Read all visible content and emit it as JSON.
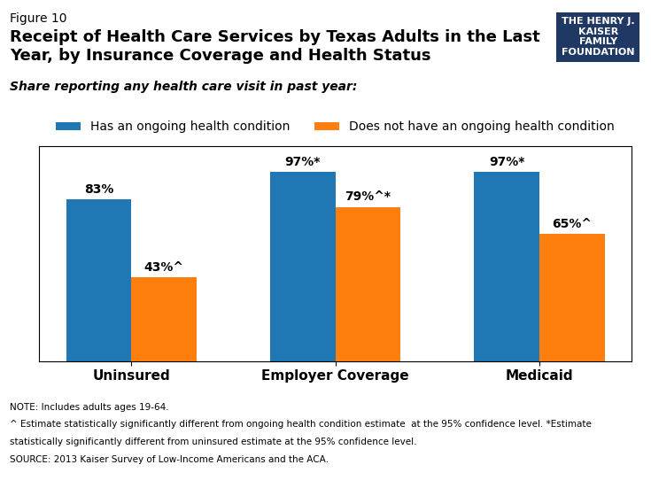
{
  "chart_data": {
    "type": "bar",
    "figure_label": "Figure 10",
    "title": "Receipt of Health Care Services by Texas Adults in the Last\nYear, by Insurance Coverage and Health Status",
    "subtitle": "Share reporting any health care visit in past year:",
    "categories": [
      "Uninsured",
      "Employer Coverage",
      "Medicaid"
    ],
    "series": [
      {
        "name": "Has an ongoing health condition",
        "values": [
          83,
          97,
          97
        ],
        "value_labels": [
          "83%",
          "97%*",
          "97%*"
        ]
      },
      {
        "name": "Does not have an ongoing health condition",
        "values": [
          43,
          79,
          65
        ],
        "value_labels": [
          "43%^",
          "79%^*",
          "65%^"
        ]
      }
    ],
    "ylim": [
      0,
      110
    ],
    "yticks": [],
    "tick_labels": "x",
    "data_labels": true,
    "notes": [
      "NOTE: Includes adults ages 19-64.",
      "^ Estimate statistically significantly different from ongoing health condition estimate  at the 95% confidence level. *Estimate",
      "statistically significantly different from uninsured estimate at the 95% confidence level.",
      "SOURCE: 2013 Kaiser Survey of Low-Income Americans and the ACA."
    ],
    "annotations": [
      "THE HENRY J.\nKAISER\nFAMILY\nFOUNDATION"
    ]
  }
}
